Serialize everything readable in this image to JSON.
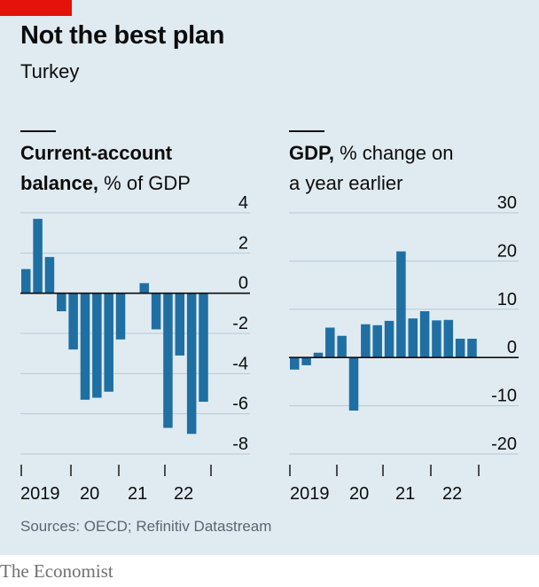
{
  "header": {
    "title": "Not the best plan",
    "subtitle": "Turkey"
  },
  "left_chart_title": {
    "bold": "Current-account",
    "bold2": "balance,",
    "rest": "% of GDP"
  },
  "right_chart_title": {
    "bold": "GDP,",
    "rest": "% change on",
    "line2": "a year earlier"
  },
  "footer": {
    "source": "Sources: OECD; Refinitiv Datastream",
    "brand": "The Economist"
  },
  "colors": {
    "bar": "#1f6fa3",
    "accent": "#e3120b",
    "background": "#e0ebf1",
    "grid": "#b6c9d4"
  },
  "chart_data": [
    {
      "type": "bar",
      "title": "Current-account balance, % of GDP",
      "frequency": "quarterly",
      "x_tick_labels": [
        "2019",
        "20",
        "21",
        "22"
      ],
      "yticks": [
        4,
        2,
        0,
        -2,
        -4,
        -6,
        -8
      ],
      "ylim": [
        -8,
        4
      ],
      "values": [
        1.2,
        3.7,
        1.8,
        -0.9,
        -2.8,
        -5.3,
        -5.2,
        -4.9,
        -2.3,
        null,
        0.5,
        -1.8,
        -6.7,
        -3.1,
        -7.0,
        -5.4
      ],
      "grid": true
    },
    {
      "type": "bar",
      "title": "GDP, % change on a year earlier",
      "frequency": "quarterly",
      "x_tick_labels": [
        "2019",
        "20",
        "21",
        "22"
      ],
      "yticks": [
        30,
        20,
        10,
        0,
        -10,
        -20
      ],
      "ylim": [
        -20,
        30
      ],
      "values": [
        -2.5,
        -1.6,
        1.0,
        6.2,
        4.5,
        -11.0,
        6.9,
        6.7,
        7.6,
        22.0,
        8.1,
        9.6,
        7.7,
        7.8,
        3.9,
        3.9
      ],
      "grid": true
    }
  ]
}
